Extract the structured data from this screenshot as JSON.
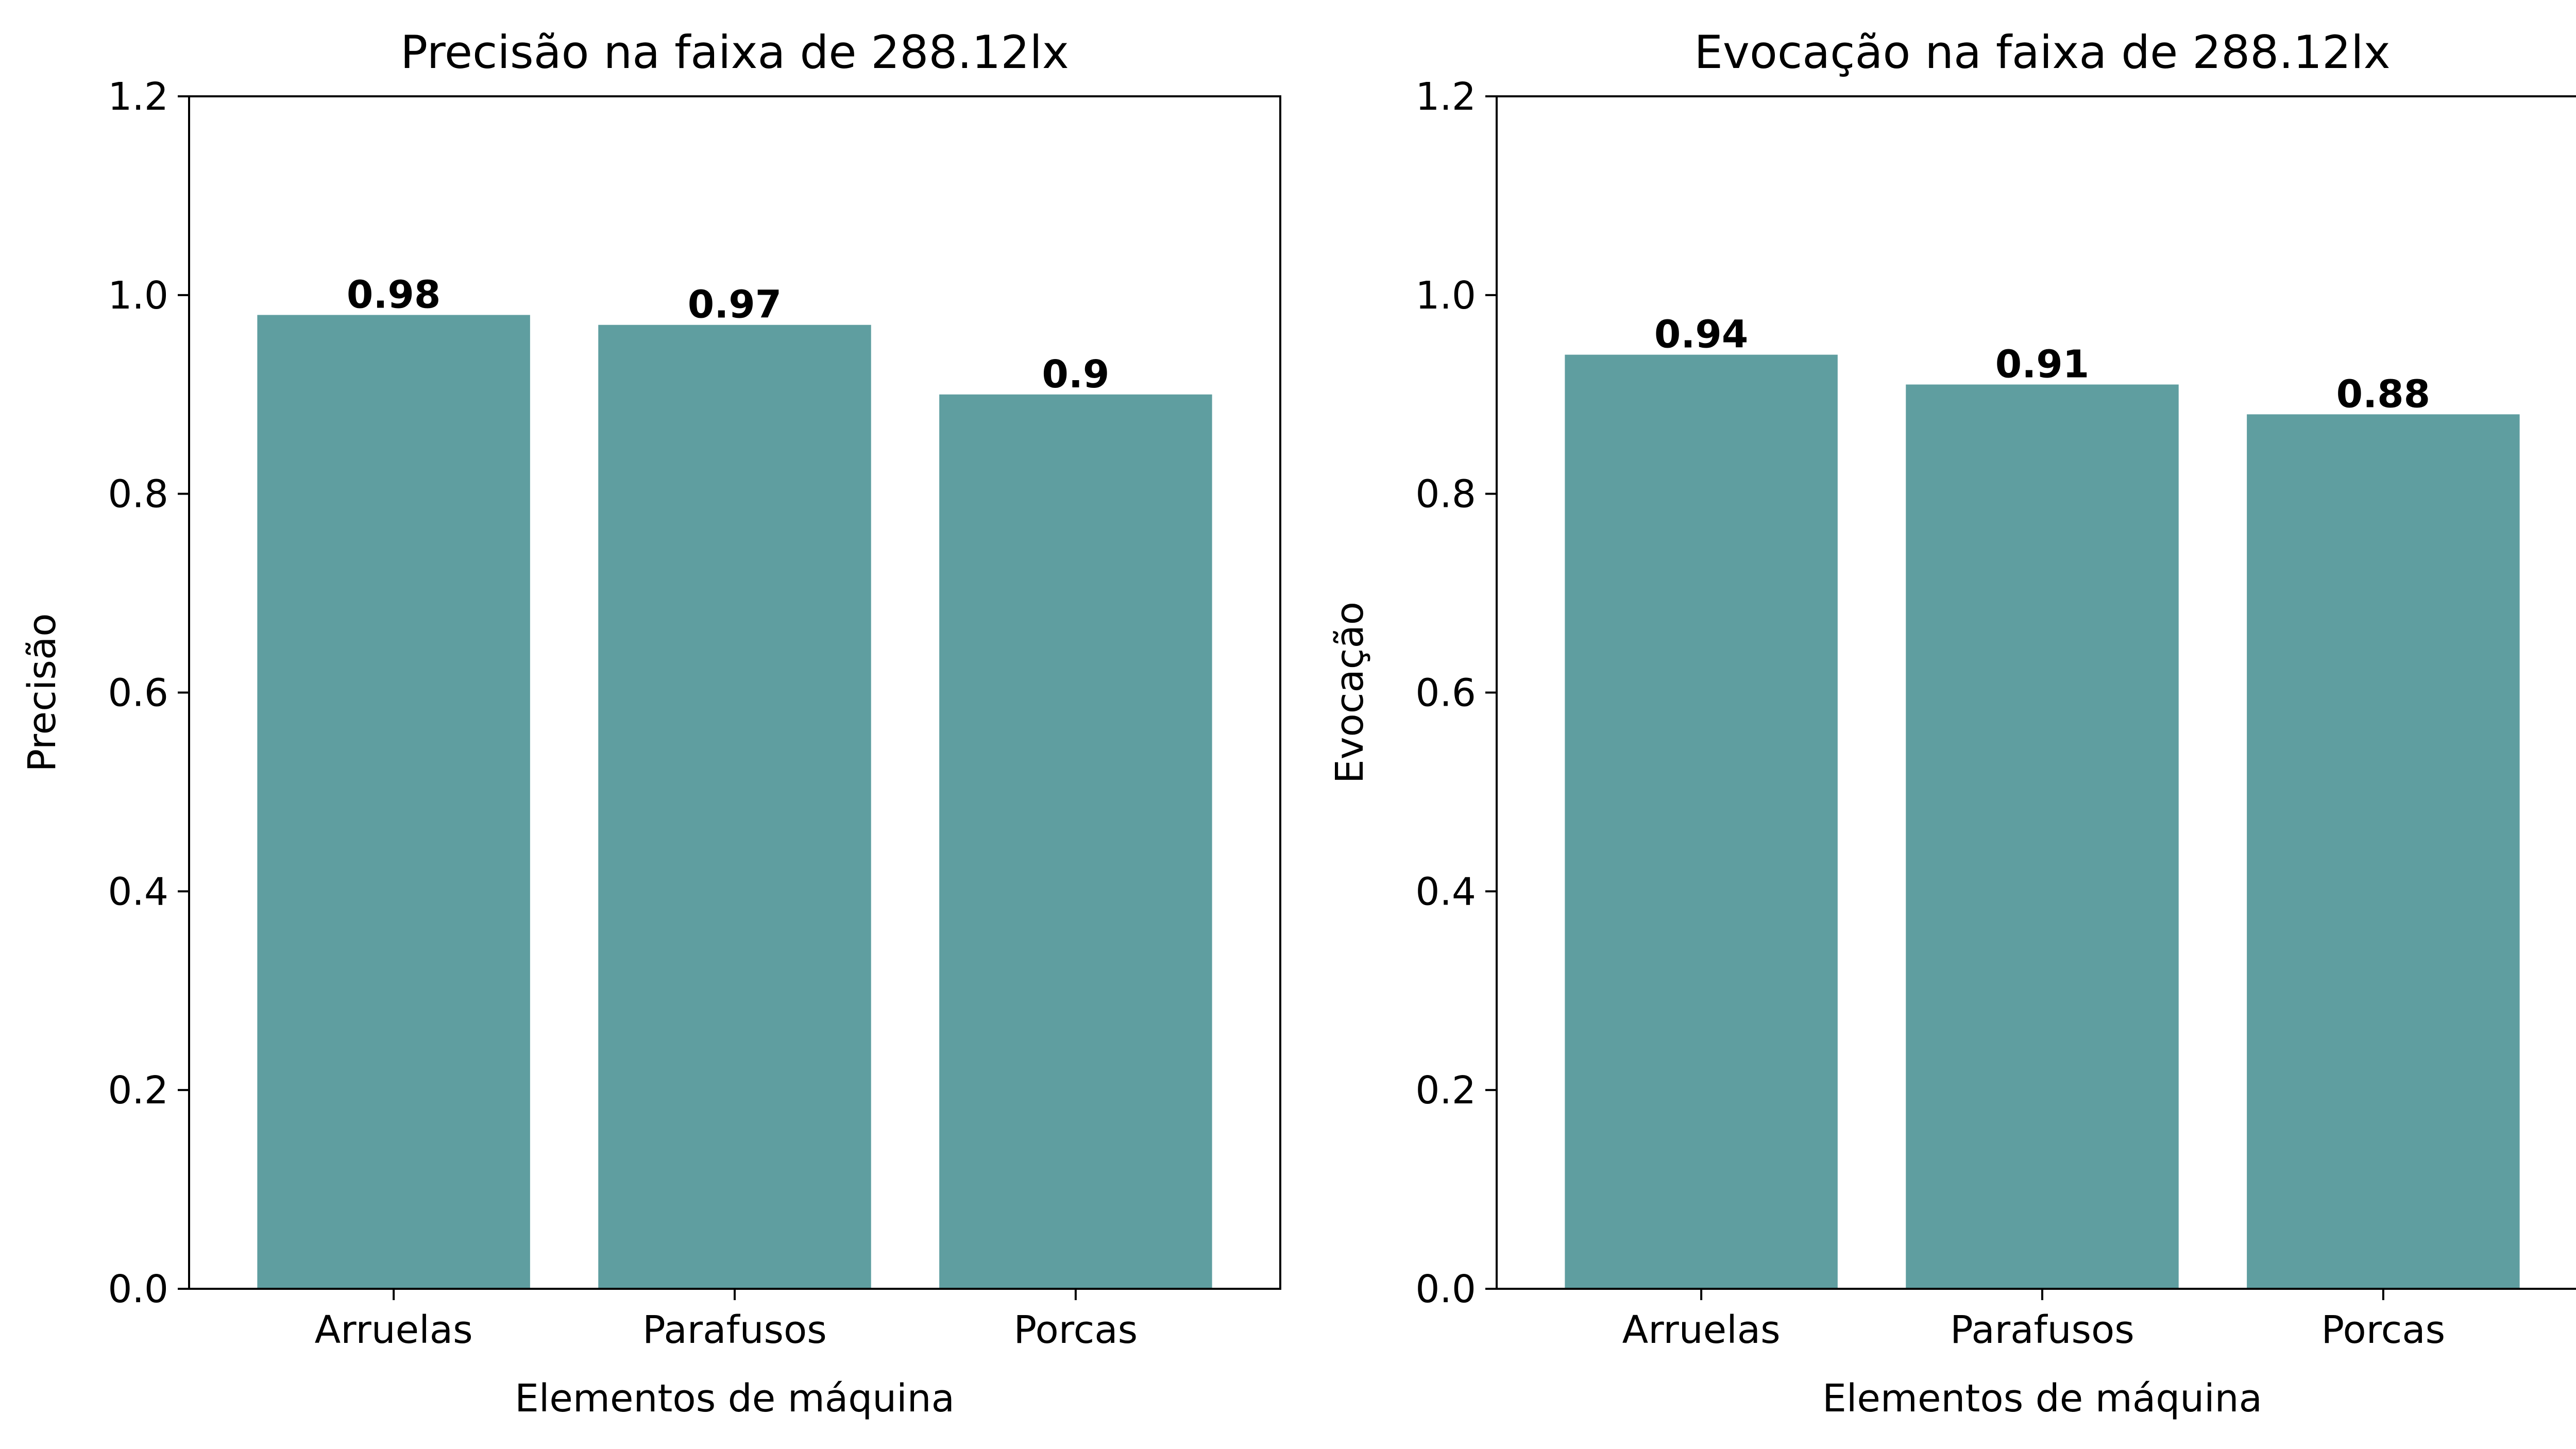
{
  "chart_data": [
    {
      "type": "bar",
      "title": "Precisão na faixa de 288.12lx",
      "xlabel": "Elementos de máquina",
      "ylabel": "Precisão",
      "categories": [
        "Arruelas",
        "Parafusos",
        "Porcas"
      ],
      "values": [
        0.98,
        0.97,
        0.9
      ],
      "data_labels": [
        "0.98",
        "0.97",
        "0.9"
      ],
      "ylim": [
        0,
        1.2
      ],
      "yticks": [
        "0.0",
        "0.2",
        "0.4",
        "0.6",
        "0.8",
        "1.0",
        "1.2"
      ],
      "grid": false,
      "bar_color": "#5f9ea0"
    },
    {
      "type": "bar",
      "title": "Evocação na faixa de 288.12lx",
      "xlabel": "Elementos de máquina",
      "ylabel": "Evocação",
      "categories": [
        "Arruelas",
        "Parafusos",
        "Porcas"
      ],
      "values": [
        0.94,
        0.91,
        0.88
      ],
      "data_labels": [
        "0.94",
        "0.91",
        "0.88"
      ],
      "ylim": [
        0,
        1.2
      ],
      "yticks": [
        "0.0",
        "0.2",
        "0.4",
        "0.6",
        "0.8",
        "1.0",
        "1.2"
      ],
      "grid": false,
      "bar_color": "#5f9ea0"
    }
  ]
}
